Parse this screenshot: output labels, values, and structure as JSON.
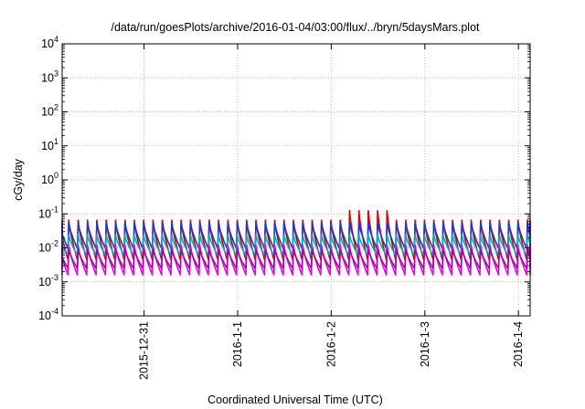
{
  "chart_data": {
    "type": "line",
    "title": "/data/run/goesPlots/archive/2016-01-04/03:00/flux/../bryn/5daysMars.plot",
    "xlabel": "Coordinated Universal Time (UTC)",
    "ylabel": "cGy/day",
    "yscale": "log",
    "ylim": [
      0.0001,
      10000
    ],
    "xlim": [
      "2015-12-30 03:00",
      "2016-01-04 03:00"
    ],
    "grid": true,
    "legend": "none",
    "y_ticks": [
      {
        "base": "10",
        "exp": "-4",
        "value": 0.0001
      },
      {
        "base": "10",
        "exp": "-3",
        "value": 0.001
      },
      {
        "base": "10",
        "exp": "-2",
        "value": 0.01
      },
      {
        "base": "10",
        "exp": "-1",
        "value": 0.1
      },
      {
        "base": "10",
        "exp": "0",
        "value": 1
      },
      {
        "base": "10",
        "exp": "1",
        "value": 10
      },
      {
        "base": "10",
        "exp": "2",
        "value": 100
      },
      {
        "base": "10",
        "exp": "3",
        "value": 1000
      },
      {
        "base": "10",
        "exp": "4",
        "value": 10000
      }
    ],
    "x_ticks": [
      {
        "label": "2015-12-31",
        "value": "2015-12-31 00:00"
      },
      {
        "label": "2016-1-1",
        "value": "2016-01-01 00:00"
      },
      {
        "label": "2016-1-2",
        "value": "2016-01-02 00:00"
      },
      {
        "label": "2016-1-3",
        "value": "2016-01-03 00:00"
      },
      {
        "label": "2016-1-4",
        "value": "2016-01-04 00:00"
      }
    ],
    "series": [
      {
        "color": "#dd0000",
        "period_hours": 2.4,
        "peak": 0.065,
        "trough": 0.0045
      },
      {
        "color": "#2233dd",
        "period_hours": 2.4,
        "peak": 0.055,
        "trough": 0.0095
      },
      {
        "color": "#00b4b4",
        "period_hours": 2.4,
        "peak": 0.024,
        "trough": 0.006
      },
      {
        "color": "#ee00ee",
        "period_hours": 2.4,
        "peak": 0.012,
        "trough": 0.0016
      },
      {
        "color": "#aa00aa",
        "period_hours": 2.4,
        "peak": 0.009,
        "trough": 0.0025
      }
    ]
  }
}
